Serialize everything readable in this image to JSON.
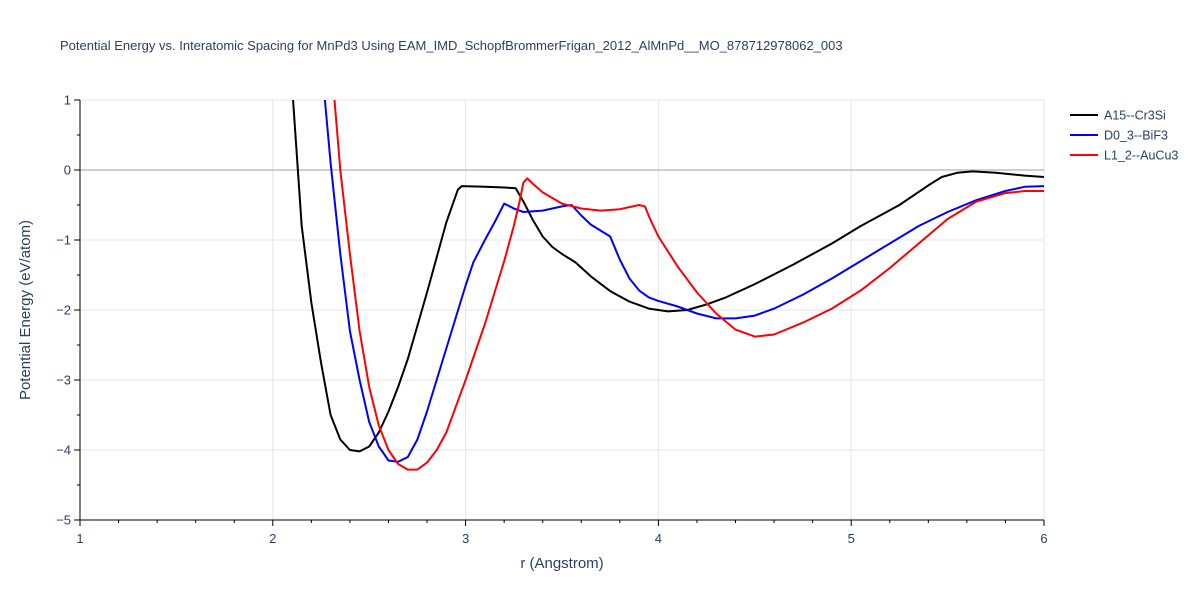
{
  "chart_data": {
    "type": "line",
    "title": "Potential Energy vs. Interatomic Spacing for MnPd3 Using EAM_IMD_SchopfBrommerFrigan_2012_AlMnPd__MO_878712978062_003",
    "xlabel": "r (Angstrom)",
    "ylabel": "Potential Energy (eV/atom)",
    "xlim": [
      1,
      6
    ],
    "ylim": [
      -5,
      1
    ],
    "xticks": [
      1,
      2,
      3,
      4,
      5,
      6
    ],
    "yticks": [
      1,
      0,
      -1,
      -2,
      -3,
      -4,
      -5
    ],
    "xtick_labels": [
      "1",
      "2",
      "3",
      "4",
      "5",
      "6"
    ],
    "ytick_labels": [
      "1",
      "0",
      "−1",
      "−2",
      "−3",
      "−4",
      "−5"
    ],
    "grid": true,
    "legend_position": "top-right",
    "series": [
      {
        "name": "A15--Cr3Si",
        "color": "#000000",
        "x": [
          2.1,
          2.15,
          2.2,
          2.25,
          2.3,
          2.35,
          2.4,
          2.45,
          2.5,
          2.55,
          2.6,
          2.65,
          2.7,
          2.8,
          2.9,
          2.96,
          2.98,
          3.1,
          3.2,
          3.26,
          3.3,
          3.35,
          3.4,
          3.45,
          3.5,
          3.57,
          3.65,
          3.75,
          3.85,
          3.95,
          4.05,
          4.15,
          4.25,
          4.35,
          4.5,
          4.7,
          4.9,
          5.05,
          5.25,
          5.4,
          5.47,
          5.55,
          5.63,
          5.75,
          5.9,
          6.0
        ],
        "y": [
          1.2,
          -0.8,
          -1.9,
          -2.75,
          -3.5,
          -3.85,
          -4.0,
          -4.02,
          -3.95,
          -3.75,
          -3.45,
          -3.1,
          -2.7,
          -1.75,
          -0.75,
          -0.28,
          -0.23,
          -0.24,
          -0.25,
          -0.26,
          -0.45,
          -0.72,
          -0.95,
          -1.1,
          -1.2,
          -1.32,
          -1.52,
          -1.73,
          -1.88,
          -1.98,
          -2.02,
          -2.0,
          -1.92,
          -1.82,
          -1.63,
          -1.35,
          -1.05,
          -0.8,
          -0.5,
          -0.22,
          -0.1,
          -0.04,
          -0.02,
          -0.04,
          -0.08,
          -0.1
        ]
      },
      {
        "name": "D0_3--BiF3",
        "color": "#0000ff",
        "x": [
          2.27,
          2.3,
          2.35,
          2.4,
          2.45,
          2.5,
          2.55,
          2.6,
          2.65,
          2.7,
          2.75,
          2.8,
          2.9,
          3.0,
          3.04,
          3.1,
          3.15,
          3.2,
          3.25,
          3.3,
          3.4,
          3.5,
          3.55,
          3.6,
          3.65,
          3.75,
          3.8,
          3.85,
          3.9,
          3.95,
          4.0,
          4.1,
          4.2,
          4.3,
          4.4,
          4.5,
          4.6,
          4.75,
          4.9,
          5.05,
          5.2,
          5.35,
          5.5,
          5.65,
          5.8,
          5.9,
          6.0
        ],
        "y": [
          1.0,
          0.1,
          -1.2,
          -2.3,
          -3.0,
          -3.6,
          -3.95,
          -4.15,
          -4.17,
          -4.1,
          -3.85,
          -3.45,
          -2.55,
          -1.65,
          -1.32,
          -1.0,
          -0.75,
          -0.48,
          -0.55,
          -0.6,
          -0.58,
          -0.52,
          -0.5,
          -0.65,
          -0.78,
          -0.95,
          -1.28,
          -1.55,
          -1.72,
          -1.82,
          -1.87,
          -1.95,
          -2.05,
          -2.12,
          -2.12,
          -2.08,
          -1.98,
          -1.78,
          -1.55,
          -1.3,
          -1.05,
          -0.8,
          -0.6,
          -0.43,
          -0.3,
          -0.24,
          -0.23
        ]
      },
      {
        "name": "L1_2--AuCu3",
        "color": "#ff0000",
        "x": [
          2.32,
          2.35,
          2.4,
          2.45,
          2.5,
          2.55,
          2.6,
          2.65,
          2.7,
          2.75,
          2.8,
          2.85,
          2.9,
          3.0,
          3.1,
          3.2,
          3.25,
          3.28,
          3.3,
          3.32,
          3.35,
          3.4,
          3.5,
          3.6,
          3.7,
          3.8,
          3.9,
          3.93,
          3.96,
          4.0,
          4.1,
          4.2,
          4.3,
          4.4,
          4.5,
          4.6,
          4.75,
          4.9,
          5.05,
          5.2,
          5.35,
          5.5,
          5.65,
          5.8,
          5.9,
          6.0
        ],
        "y": [
          1.0,
          0.0,
          -1.2,
          -2.3,
          -3.1,
          -3.65,
          -4.0,
          -4.2,
          -4.28,
          -4.28,
          -4.18,
          -4.0,
          -3.75,
          -3.0,
          -2.2,
          -1.3,
          -0.8,
          -0.45,
          -0.18,
          -0.12,
          -0.2,
          -0.32,
          -0.48,
          -0.55,
          -0.58,
          -0.56,
          -0.5,
          -0.52,
          -0.72,
          -0.95,
          -1.38,
          -1.75,
          -2.05,
          -2.28,
          -2.38,
          -2.35,
          -2.18,
          -1.98,
          -1.72,
          -1.4,
          -1.05,
          -0.7,
          -0.45,
          -0.33,
          -0.3,
          -0.3
        ]
      }
    ]
  }
}
